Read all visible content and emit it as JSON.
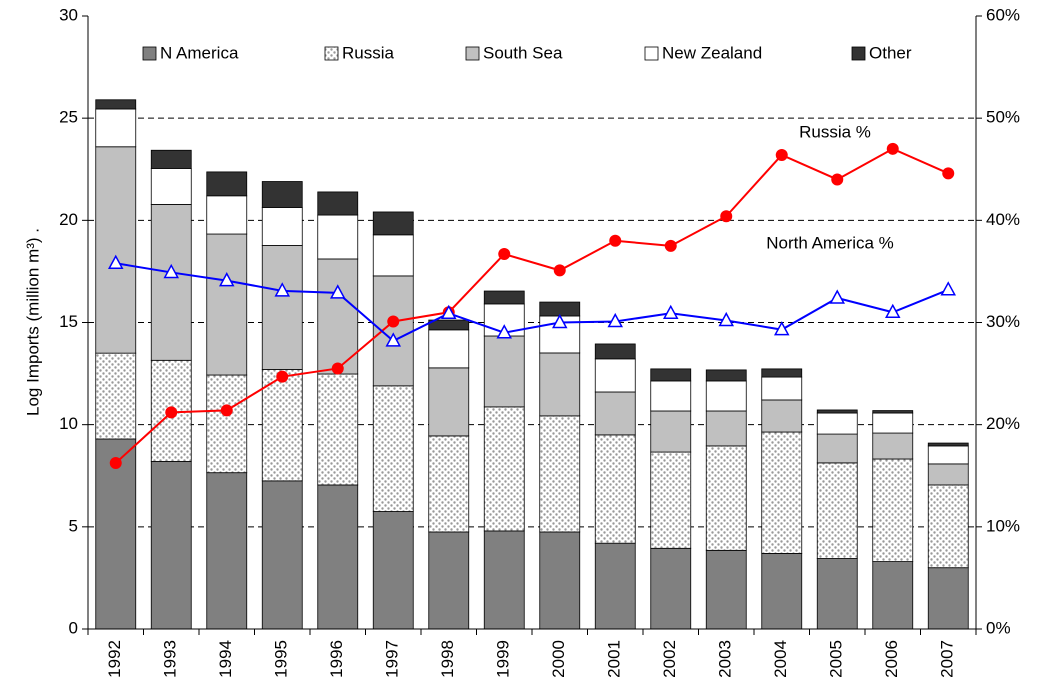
{
  "chart_data": {
    "type": "stacked-bar-line",
    "y_label": "Log Imports (million m³) .",
    "categories": [
      "1992",
      "1993",
      "1994",
      "1995",
      "1996",
      "1997",
      "1998",
      "1999",
      "2000",
      "2001",
      "2002",
      "2003",
      "2004",
      "2005",
      "2006",
      "2007"
    ],
    "series": [
      {
        "name": "N America",
        "color": "#808080",
        "values": [
          9.3,
          8.2,
          7.65,
          7.25,
          7.05,
          5.75,
          4.75,
          4.8,
          4.75,
          4.2,
          3.95,
          3.85,
          3.7,
          3.45,
          3.3,
          3.0
        ]
      },
      {
        "name": "Russia",
        "color": "#ffffff",
        "pattern": "dots",
        "values": [
          4.2,
          4.95,
          4.78,
          5.45,
          5.43,
          6.15,
          4.7,
          6.07,
          5.68,
          5.3,
          4.71,
          5.11,
          5.94,
          4.68,
          5.02,
          4.05
        ]
      },
      {
        "name": "South Sea",
        "color": "#c0c0c0",
        "values": [
          10.1,
          7.63,
          6.9,
          6.07,
          5.63,
          5.38,
          3.33,
          3.47,
          3.08,
          2.1,
          2.01,
          1.71,
          1.57,
          1.41,
          1.27,
          1.03
        ]
      },
      {
        "name": "New Zealand",
        "color": "#ffffff",
        "values": [
          1.85,
          1.76,
          1.87,
          1.86,
          2.15,
          2.01,
          1.86,
          1.57,
          1.81,
          1.62,
          1.47,
          1.47,
          1.12,
          1.03,
          0.98,
          0.88
        ]
      },
      {
        "name": "Other",
        "color": "#333333",
        "values": [
          0.45,
          0.89,
          1.17,
          1.27,
          1.13,
          1.12,
          0.48,
          0.63,
          0.68,
          0.73,
          0.59,
          0.54,
          0.4,
          0.15,
          0.12,
          0.14
        ]
      }
    ],
    "lines": [
      {
        "name": "Russia %",
        "color": "#ff0000",
        "marker": "circle",
        "axis": "y2",
        "values": [
          16.25,
          21.2,
          21.4,
          24.7,
          25.5,
          30.1,
          31.0,
          36.7,
          35.1,
          38.0,
          37.5,
          40.4,
          46.4,
          44.0,
          47.0,
          44.6
        ]
      },
      {
        "name": "North America  %",
        "color": "#0000ff",
        "marker": "triangle",
        "axis": "y2",
        "values": [
          35.8,
          34.9,
          34.1,
          33.1,
          32.9,
          28.2,
          30.9,
          29.0,
          30.0,
          30.1,
          30.9,
          30.2,
          29.3,
          32.4,
          31.0,
          33.2
        ]
      }
    ],
    "ylim": [
      0,
      30
    ],
    "yticks": [
      0,
      5,
      10,
      15,
      20,
      25,
      30
    ],
    "y2lim": [
      0,
      60
    ],
    "y2ticks": [
      {
        "value": 0,
        "label": "0%"
      },
      {
        "value": 10,
        "label": "10%"
      },
      {
        "value": 20,
        "label": "20%"
      },
      {
        "value": 30,
        "label": "30%"
      },
      {
        "value": 40,
        "label": "40%"
      },
      {
        "value": 50,
        "label": "50%"
      },
      {
        "value": 60,
        "label": "60%"
      }
    ],
    "grid": true,
    "legend": "top"
  }
}
